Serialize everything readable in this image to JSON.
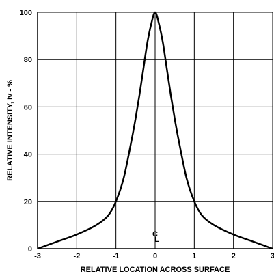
{
  "chart_data": {
    "type": "line",
    "title": "",
    "xlabel": "RELATIVE LOCATION ACROSS SURFACE",
    "ylabel": "RELATIVE INTENSITY, Iv - %",
    "xlim": [
      -3,
      3
    ],
    "ylim": [
      0,
      100
    ],
    "x_ticks": [
      "-3",
      "-2",
      "-1",
      "0",
      "1",
      "2",
      "3"
    ],
    "y_ticks": [
      "0",
      "20",
      "40",
      "60",
      "80",
      "100"
    ],
    "grid": true,
    "annotation": {
      "text": "C",
      "subscript": "L"
    },
    "series": [
      {
        "x": [
          -3,
          -2.5,
          -2,
          -1.5,
          -1.2,
          -1.0,
          -0.8,
          -0.6,
          -0.5,
          -0.4,
          -0.3,
          -0.2,
          -0.1,
          0,
          0.1,
          0.2,
          0.3,
          0.4,
          0.5,
          0.6,
          0.8,
          1.0,
          1.2,
          1.5,
          2,
          2.5,
          3
        ],
        "y": [
          0,
          3,
          6,
          10,
          14,
          20,
          30,
          46,
          55,
          65,
          76,
          87,
          95,
          100,
          95,
          87,
          76,
          65,
          55,
          46,
          30,
          20,
          14,
          10,
          6,
          3,
          0
        ]
      }
    ]
  }
}
